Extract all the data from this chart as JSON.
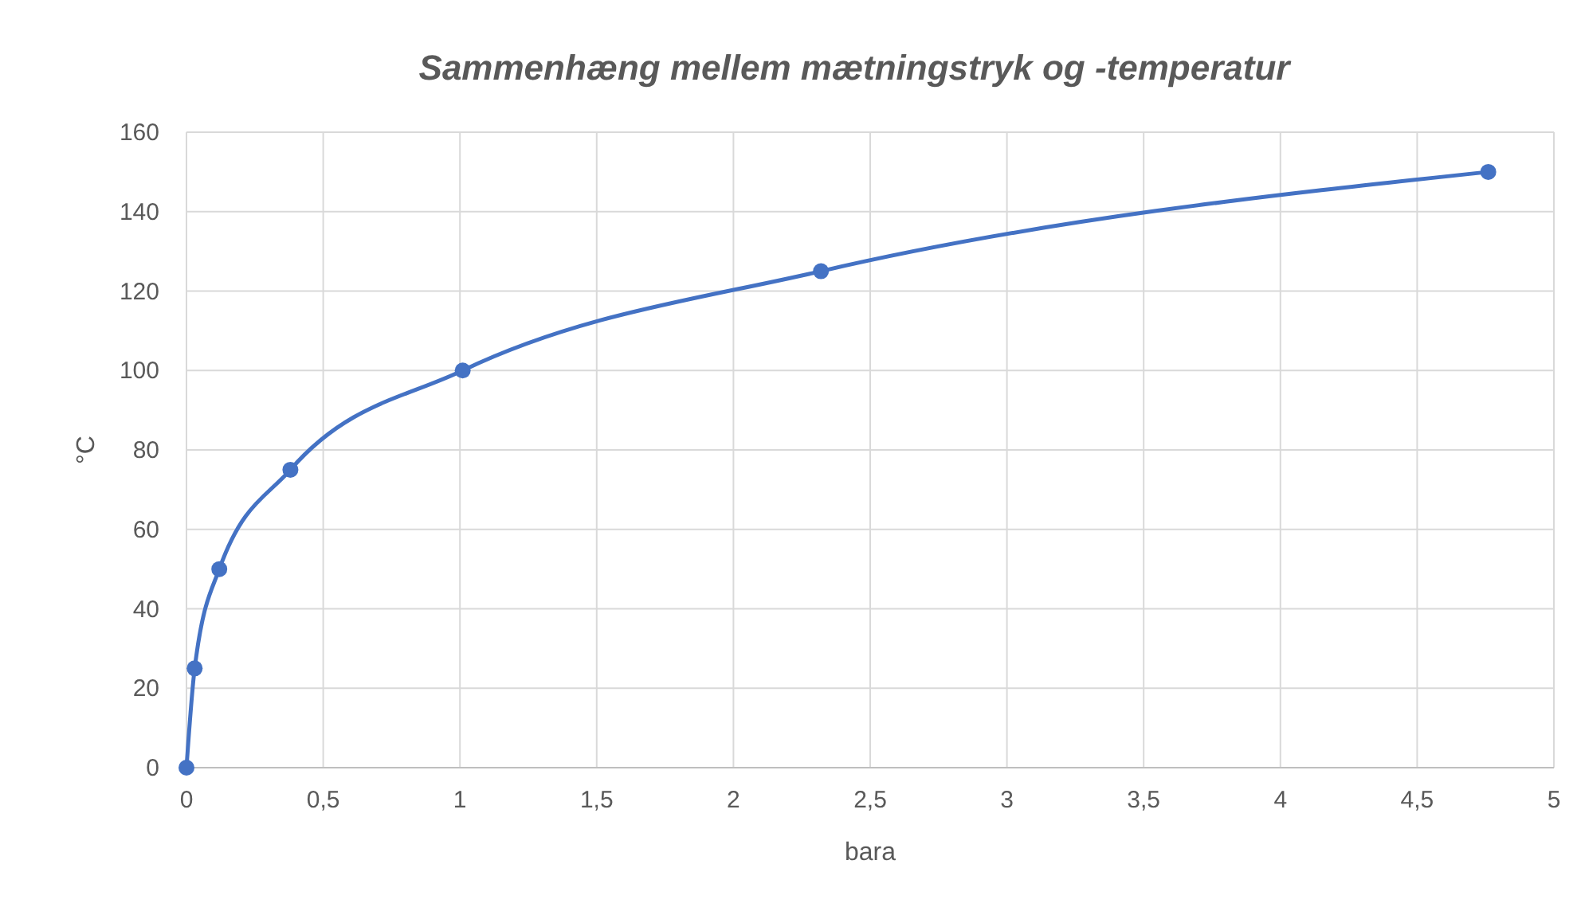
{
  "chart_data": {
    "type": "line",
    "title": "Sammenhæng mellem mætningstryk og -temperatur",
    "xlabel": "bara",
    "ylabel": "°C",
    "x": [
      0,
      0.03,
      0.12,
      0.38,
      1.01,
      2.32,
      4.76
    ],
    "series": [
      {
        "color": "#4472c4",
        "values": [
          0,
          25,
          50,
          75,
          100,
          125,
          150
        ]
      }
    ],
    "xlim": [
      0,
      5
    ],
    "xticks": [
      0,
      {
        "value": 0.5,
        "label": "0,5"
      },
      1,
      {
        "value": 1.5,
        "label": "1,5"
      },
      2,
      {
        "value": 2.5,
        "label": "2,5"
      },
      3,
      {
        "value": 3.5,
        "label": "3,5"
      },
      4,
      {
        "value": 4.5,
        "label": "4,5"
      },
      5
    ],
    "ylim": [
      0,
      160
    ],
    "yticks": [
      0,
      20,
      40,
      60,
      80,
      100,
      120,
      140,
      160
    ],
    "grid": true,
    "marker": "circle",
    "line_style": "solid"
  }
}
